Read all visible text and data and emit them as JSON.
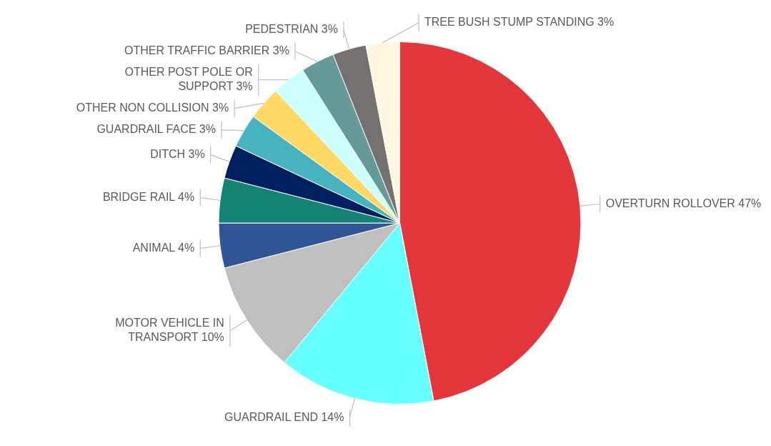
{
  "chart_data": {
    "type": "pie",
    "categories": [
      "OVERTURN ROLLOVER",
      "GUARDRAIL END",
      "MOTOR VEHICLE IN TRANSPORT",
      "ANIMAL",
      "BRIDGE RAIL",
      "DITCH",
      "GUARDRAIL FACE",
      "OTHER NON COLLISION",
      "OTHER POST POLE OR SUPPORT",
      "OTHER TRAFFIC BARRIER",
      "PEDESTRIAN",
      "TREE BUSH STUMP STANDING"
    ],
    "values": [
      47,
      14,
      10,
      4,
      4,
      3,
      3,
      3,
      3,
      3,
      3,
      3
    ],
    "value_labels": [
      "47%",
      "14%",
      "10%",
      "4%",
      "4%",
      "3%",
      "3%",
      "3%",
      "3%",
      "3%",
      "3%",
      "3%"
    ],
    "colors": [
      "#e4373c",
      "#66ffff",
      "#bfbfbf",
      "#2f5597",
      "#138474",
      "#002060",
      "#47b3be",
      "#ffd966",
      "#ccffff",
      "#669999",
      "#767171",
      "#fff6e0"
    ],
    "legend": false
  }
}
